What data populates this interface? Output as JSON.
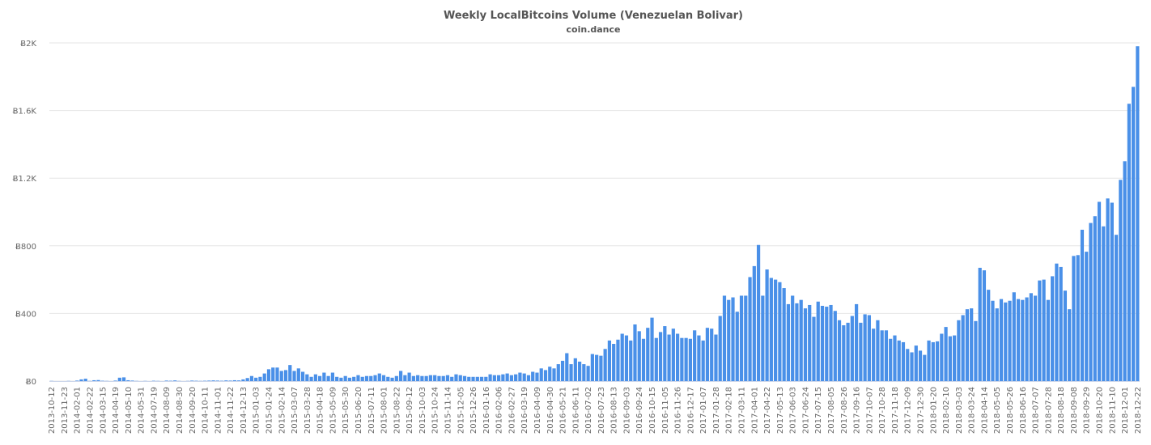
{
  "chart_data": {
    "type": "bar",
    "title": "Weekly LocalBitcoins Volume (Venezuelan Bolivar)",
    "subtitle": "coin.dance",
    "color": "#4a90e8",
    "grid": true,
    "ylim": [
      0,
      2000
    ],
    "yticks": [
      {
        "value": 0,
        "label": "Ƀ0"
      },
      {
        "value": 400,
        "label": "Ƀ400"
      },
      {
        "value": 800,
        "label": "Ƀ800"
      },
      {
        "value": 1200,
        "label": "Ƀ1.2K"
      },
      {
        "value": 1600,
        "label": "Ƀ1.6K"
      },
      {
        "value": 2000,
        "label": "Ƀ2K"
      }
    ],
    "categories": [
      "2013-10-12",
      null,
      null,
      "2013-11-23",
      null,
      null,
      "2014-02-01",
      null,
      null,
      "2014-02-22",
      null,
      null,
      "2014-03-15",
      null,
      null,
      "2014-04-19",
      null,
      null,
      "2014-05-10",
      null,
      null,
      "2014-05-31",
      null,
      null,
      "2014-07-19",
      null,
      null,
      "2014-08-09",
      null,
      null,
      "2014-08-30",
      null,
      null,
      "2014-09-20",
      null,
      null,
      "2014-10-11",
      null,
      null,
      "2014-11-01",
      null,
      null,
      "2014-11-22",
      null,
      null,
      "2014-12-13",
      null,
      null,
      "2015-01-03",
      null,
      null,
      "2015-01-24",
      null,
      null,
      "2015-02-14",
      null,
      null,
      "2015-03-07",
      null,
      null,
      "2015-03-28",
      null,
      null,
      "2015-04-18",
      null,
      null,
      "2015-05-09",
      null,
      null,
      "2015-05-30",
      null,
      null,
      "2015-06-20",
      null,
      null,
      "2015-07-11",
      null,
      null,
      "2015-08-01",
      null,
      null,
      "2015-08-22",
      null,
      null,
      "2015-09-12",
      null,
      null,
      "2015-10-03",
      null,
      null,
      "2015-10-24",
      null,
      null,
      "2015-11-14",
      null,
      null,
      "2015-12-05",
      null,
      null,
      "2015-12-26",
      null,
      null,
      "2016-01-16",
      null,
      null,
      "2016-02-06",
      null,
      null,
      "2016-02-27",
      null,
      null,
      "2016-03-19",
      null,
      null,
      "2016-04-09",
      null,
      null,
      "2016-04-30",
      null,
      null,
      "2016-05-21",
      null,
      null,
      "2016-06-11",
      null,
      null,
      "2016-07-02",
      null,
      null,
      "2016-07-23",
      null,
      null,
      "2016-08-13",
      null,
      null,
      "2016-09-03",
      null,
      null,
      "2016-09-24",
      null,
      null,
      "2016-10-15",
      null,
      null,
      "2016-11-05",
      null,
      null,
      "2016-11-26",
      null,
      null,
      "2016-12-17",
      null,
      null,
      "2017-01-07",
      null,
      null,
      "2017-01-28",
      null,
      null,
      "2017-02-18",
      null,
      null,
      "2017-03-11",
      null,
      null,
      "2017-04-01",
      null,
      null,
      "2017-04-22",
      null,
      null,
      "2017-05-13",
      null,
      null,
      "2017-06-03",
      null,
      null,
      "2017-06-24",
      null,
      null,
      "2017-07-15",
      null,
      null,
      "2017-08-05",
      null,
      null,
      "2017-08-26",
      null,
      null,
      "2017-09-16",
      null,
      null,
      "2017-10-07",
      null,
      null,
      "2017-10-28",
      null,
      null,
      "2017-11-18",
      null,
      null,
      "2017-12-09",
      null,
      null,
      "2017-12-30",
      null,
      null,
      "2018-01-20",
      null,
      null,
      "2018-02-10",
      null,
      null,
      "2018-03-03",
      null,
      null,
      "2018-03-24",
      null,
      null,
      "2018-04-14",
      null,
      null,
      "2018-05-05",
      null,
      null,
      "2018-05-26",
      null,
      null,
      "2018-06-16",
      null,
      null,
      "2018-07-07",
      null,
      null,
      "2018-07-28",
      null,
      null,
      "2018-08-18",
      null,
      null,
      "2018-09-08",
      null,
      null,
      "2018-09-29",
      null,
      null,
      "2018-10-20",
      null,
      null,
      "2018-11-10",
      null,
      null,
      "2018-12-01",
      null,
      null,
      "2018-12-22"
    ],
    "values": [
      1,
      0,
      0,
      0,
      1,
      0,
      3,
      10,
      14,
      1,
      5,
      6,
      2,
      1,
      0,
      3,
      20,
      22,
      5,
      3,
      1,
      0,
      1,
      0,
      2,
      1,
      0,
      3,
      2,
      4,
      1,
      0,
      1,
      3,
      2,
      1,
      2,
      3,
      4,
      3,
      2,
      4,
      3,
      5,
      4,
      10,
      18,
      30,
      20,
      25,
      45,
      70,
      80,
      80,
      60,
      65,
      95,
      60,
      75,
      55,
      40,
      25,
      40,
      30,
      50,
      30,
      50,
      25,
      20,
      30,
      20,
      25,
      35,
      25,
      30,
      30,
      35,
      45,
      35,
      25,
      20,
      30,
      60,
      35,
      50,
      30,
      35,
      30,
      30,
      35,
      35,
      30,
      30,
      35,
      25,
      40,
      35,
      30,
      25,
      25,
      25,
      25,
      25,
      40,
      35,
      35,
      40,
      45,
      35,
      40,
      50,
      45,
      35,
      55,
      50,
      75,
      65,
      85,
      75,
      100,
      120,
      165,
      100,
      135,
      115,
      100,
      90,
      160,
      155,
      150,
      190,
      240,
      220,
      245,
      280,
      270,
      240,
      335,
      295,
      250,
      315,
      375,
      255,
      290,
      325,
      275,
      310,
      280,
      255,
      255,
      250,
      300,
      270,
      240,
      315,
      310,
      275,
      385,
      505,
      480,
      495,
      410,
      505,
      505,
      615,
      680,
      805,
      505,
      660,
      610,
      600,
      585,
      550,
      455,
      505,
      460,
      480,
      430,
      450,
      380,
      470,
      445,
      440,
      450,
      415,
      360,
      330,
      345,
      385,
      455,
      345,
      395,
      390,
      310,
      360,
      300,
      300,
      250,
      270,
      240,
      230,
      190,
      170,
      210,
      180,
      155,
      240,
      230,
      235,
      280,
      320,
      265,
      270,
      360,
      390,
      425,
      430,
      355,
      670,
      655,
      540,
      475,
      430,
      485,
      465,
      475,
      525,
      485,
      480,
      495,
      520,
      505,
      595,
      600,
      480,
      620,
      695,
      675,
      535,
      425,
      740,
      745,
      895,
      765,
      935,
      975,
      1060,
      915,
      1080,
      1055,
      865,
      1190,
      1300,
      1640,
      1740,
      1980
    ]
  }
}
